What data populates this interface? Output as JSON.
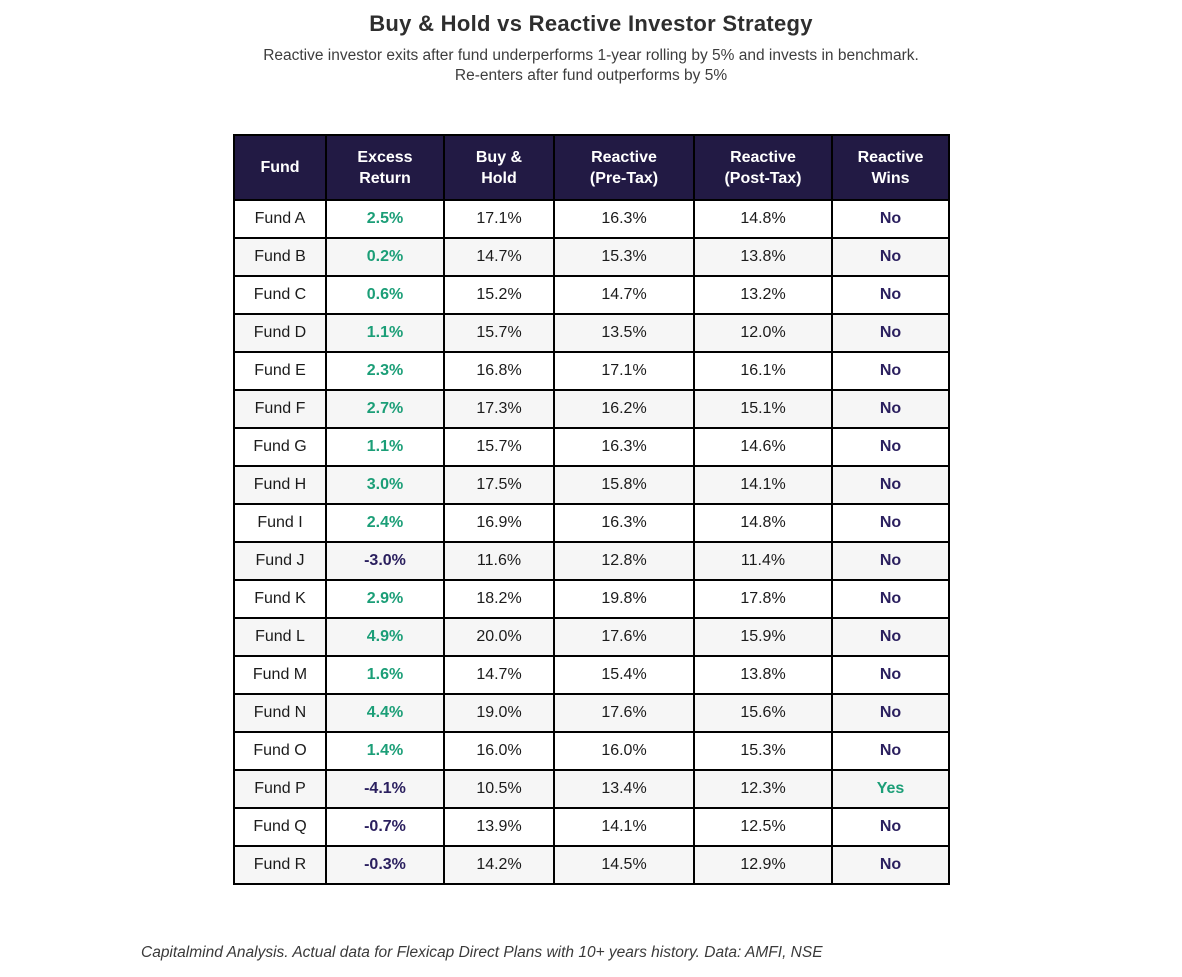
{
  "page": {
    "title": "Buy & Hold vs Reactive Investor Strategy",
    "subtitle_line1": "Reactive investor exits after fund underperforms 1-year rolling by 5% and invests in benchmark.",
    "subtitle_line2": "Re-enters after fund outperforms by 5%",
    "footnote": "Capitalmind Analysis. Actual data for Flexicap Direct Plans with 10+ years history. Data: AMFI, NSE"
  },
  "colors": {
    "header_bg": "#221a44",
    "header_text": "#ffffff",
    "positive": "#1b9e77",
    "negative": "#2a1f5e",
    "body_text": "#1b1b1b",
    "alt_row_bg": "#f6f6f6",
    "border": "#000000"
  },
  "chart_data": {
    "type": "table",
    "columns": [
      "Fund",
      "Excess\nReturn",
      "Buy &\nHold",
      "Reactive\n(Pre-Tax)",
      "Reactive\n(Post-Tax)",
      "Reactive\nWins"
    ],
    "rows": [
      {
        "fund": "Fund A",
        "excess_return": "2.5%",
        "buy_hold": "17.1%",
        "reactive_pre_tax": "16.3%",
        "reactive_post_tax": "14.8%",
        "reactive_wins": "No"
      },
      {
        "fund": "Fund B",
        "excess_return": "0.2%",
        "buy_hold": "14.7%",
        "reactive_pre_tax": "15.3%",
        "reactive_post_tax": "13.8%",
        "reactive_wins": "No"
      },
      {
        "fund": "Fund C",
        "excess_return": "0.6%",
        "buy_hold": "15.2%",
        "reactive_pre_tax": "14.7%",
        "reactive_post_tax": "13.2%",
        "reactive_wins": "No"
      },
      {
        "fund": "Fund D",
        "excess_return": "1.1%",
        "buy_hold": "15.7%",
        "reactive_pre_tax": "13.5%",
        "reactive_post_tax": "12.0%",
        "reactive_wins": "No"
      },
      {
        "fund": "Fund E",
        "excess_return": "2.3%",
        "buy_hold": "16.8%",
        "reactive_pre_tax": "17.1%",
        "reactive_post_tax": "16.1%",
        "reactive_wins": "No"
      },
      {
        "fund": "Fund F",
        "excess_return": "2.7%",
        "buy_hold": "17.3%",
        "reactive_pre_tax": "16.2%",
        "reactive_post_tax": "15.1%",
        "reactive_wins": "No"
      },
      {
        "fund": "Fund G",
        "excess_return": "1.1%",
        "buy_hold": "15.7%",
        "reactive_pre_tax": "16.3%",
        "reactive_post_tax": "14.6%",
        "reactive_wins": "No"
      },
      {
        "fund": "Fund H",
        "excess_return": "3.0%",
        "buy_hold": "17.5%",
        "reactive_pre_tax": "15.8%",
        "reactive_post_tax": "14.1%",
        "reactive_wins": "No"
      },
      {
        "fund": "Fund I",
        "excess_return": "2.4%",
        "buy_hold": "16.9%",
        "reactive_pre_tax": "16.3%",
        "reactive_post_tax": "14.8%",
        "reactive_wins": "No"
      },
      {
        "fund": "Fund J",
        "excess_return": "-3.0%",
        "buy_hold": "11.6%",
        "reactive_pre_tax": "12.8%",
        "reactive_post_tax": "11.4%",
        "reactive_wins": "No"
      },
      {
        "fund": "Fund K",
        "excess_return": "2.9%",
        "buy_hold": "18.2%",
        "reactive_pre_tax": "19.8%",
        "reactive_post_tax": "17.8%",
        "reactive_wins": "No"
      },
      {
        "fund": "Fund L",
        "excess_return": "4.9%",
        "buy_hold": "20.0%",
        "reactive_pre_tax": "17.6%",
        "reactive_post_tax": "15.9%",
        "reactive_wins": "No"
      },
      {
        "fund": "Fund M",
        "excess_return": "1.6%",
        "buy_hold": "14.7%",
        "reactive_pre_tax": "15.4%",
        "reactive_post_tax": "13.8%",
        "reactive_wins": "No"
      },
      {
        "fund": "Fund N",
        "excess_return": "4.4%",
        "buy_hold": "19.0%",
        "reactive_pre_tax": "17.6%",
        "reactive_post_tax": "15.6%",
        "reactive_wins": "No"
      },
      {
        "fund": "Fund O",
        "excess_return": "1.4%",
        "buy_hold": "16.0%",
        "reactive_pre_tax": "16.0%",
        "reactive_post_tax": "15.3%",
        "reactive_wins": "No"
      },
      {
        "fund": "Fund P",
        "excess_return": "-4.1%",
        "buy_hold": "10.5%",
        "reactive_pre_tax": "13.4%",
        "reactive_post_tax": "12.3%",
        "reactive_wins": "Yes"
      },
      {
        "fund": "Fund Q",
        "excess_return": "-0.7%",
        "buy_hold": "13.9%",
        "reactive_pre_tax": "14.1%",
        "reactive_post_tax": "12.5%",
        "reactive_wins": "No"
      },
      {
        "fund": "Fund R",
        "excess_return": "-0.3%",
        "buy_hold": "14.2%",
        "reactive_pre_tax": "14.5%",
        "reactive_post_tax": "12.9%",
        "reactive_wins": "No"
      }
    ]
  }
}
